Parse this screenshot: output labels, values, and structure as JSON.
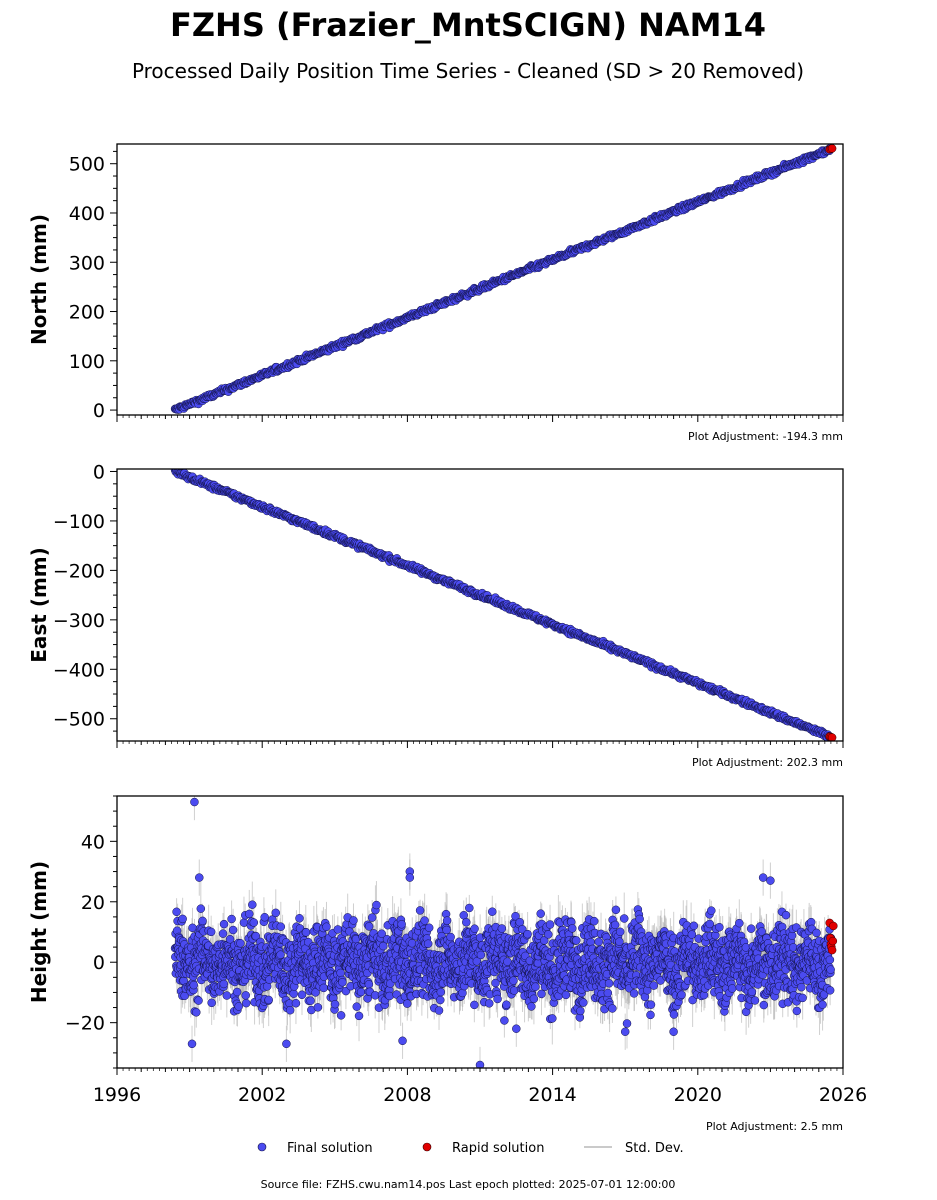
{
  "title": "FZHS (Frazier_MntSCIGN) NAM14",
  "subtitle": "Processed Daily Position Time Series - Cleaned (SD > 20 Removed)",
  "footer": "Source file: FZHS.cwu.nam14.pos  Last epoch plotted: 2025-07-01 12:00:00",
  "legend": {
    "final": "Final solution",
    "rapid": "Rapid solution",
    "std": "Std. Dev."
  },
  "colors": {
    "final": "#4b4bf0",
    "rapid": "#e00000",
    "std": "#b0b0b0",
    "edge": "#111144"
  },
  "chart_data": [
    {
      "type": "scatter",
      "ylabel": "North (mm)",
      "adjustment": "Plot Adjustment: -194.3 mm",
      "xlim": [
        1996,
        2026
      ],
      "ylim": [
        -10,
        540
      ],
      "yticks": [
        0,
        100,
        200,
        300,
        400,
        500
      ],
      "trend": {
        "start": [
          1998.4,
          0
        ],
        "end": [
          2025.5,
          530
        ],
        "noise_sd": 2.5
      },
      "rapid_points": [
        [
          2025.45,
          529
        ],
        [
          2025.5,
          530
        ],
        [
          2025.55,
          531
        ]
      ]
    },
    {
      "type": "scatter",
      "ylabel": "East (mm)",
      "adjustment": "Plot Adjustment: 202.3 mm",
      "xlim": [
        1996,
        2026
      ],
      "ylim": [
        -545,
        5
      ],
      "yticks": [
        0,
        -100,
        -200,
        -300,
        -400,
        -500
      ],
      "trend": {
        "start": [
          1998.4,
          0
        ],
        "end": [
          2025.5,
          -537
        ],
        "noise_sd": 2.5
      },
      "rapid_points": [
        [
          2025.45,
          -536
        ],
        [
          2025.5,
          -537
        ],
        [
          2025.55,
          -538
        ]
      ]
    },
    {
      "type": "scatter",
      "ylabel": "Height (mm)",
      "adjustment": "Plot Adjustment: 2.5 mm",
      "xlim": [
        1996,
        2026
      ],
      "ylim": [
        -35,
        55
      ],
      "yticks": [
        -20,
        0,
        20,
        40
      ],
      "xticks": [
        "1996",
        "2002",
        "2008",
        "2014",
        "2020",
        "2026"
      ],
      "series_range": [
        1998.4,
        2025.5
      ],
      "noise_sd": 6.5,
      "outliers": [
        [
          1999.2,
          53
        ],
        [
          1999.4,
          28
        ],
        [
          2008.1,
          30
        ],
        [
          2008.1,
          28
        ],
        [
          2011.0,
          -34
        ],
        [
          2012.5,
          -22
        ],
        [
          2017.0,
          -23
        ],
        [
          2019.0,
          -23
        ],
        [
          1999.1,
          -27
        ],
        [
          2003.0,
          -27
        ],
        [
          2007.8,
          -26
        ],
        [
          2022.7,
          28
        ],
        [
          2023.0,
          27
        ]
      ],
      "rapid_points": [
        [
          2025.45,
          13
        ],
        [
          2025.48,
          8
        ],
        [
          2025.5,
          6
        ],
        [
          2025.52,
          5
        ],
        [
          2025.55,
          4
        ],
        [
          2025.58,
          7
        ],
        [
          2025.6,
          12
        ]
      ]
    }
  ]
}
